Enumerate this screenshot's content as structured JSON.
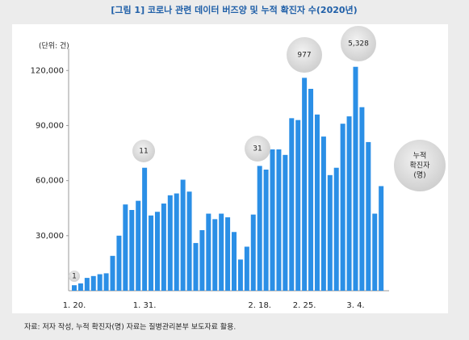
{
  "chart_data": {
    "type": "bar",
    "title": "[그림 1] 코로나 관련 데이터 버즈양 및 누적 확진자 수(2020년)",
    "y_label": "(단위: 건)",
    "source": "자료: 저자 작성, 누적 확진자(명) 자료는 질병관리본부 보도자료 활용.",
    "categories": [
      "1. 20.",
      null,
      null,
      null,
      null,
      null,
      null,
      null,
      null,
      null,
      null,
      "1. 31.",
      null,
      null,
      null,
      null,
      null,
      null,
      null,
      null,
      null,
      null,
      null,
      null,
      null,
      null,
      null,
      null,
      null,
      "2. 18.",
      null,
      null,
      null,
      null,
      null,
      null,
      "2. 25.",
      null,
      null,
      null,
      null,
      null,
      null,
      null,
      "3. 4.",
      null,
      null,
      null,
      null
    ],
    "values": [
      3000,
      4000,
      7000,
      8000,
      9000,
      9500,
      19000,
      30000,
      47000,
      44000,
      49000,
      67000,
      41000,
      43000,
      47500,
      52000,
      53000,
      60500,
      54000,
      26000,
      33000,
      42000,
      39000,
      42000,
      40000,
      32000,
      17000,
      24000,
      41500,
      68000,
      66000,
      77000,
      77000,
      74000,
      94000,
      93000,
      116000,
      110000,
      96000,
      84000,
      63000,
      67000,
      91000,
      95000,
      122000,
      100000,
      81000,
      42000,
      57000
    ],
    "color": "#2b8fe6",
    "ylim": [
      0,
      132000
    ],
    "yticks": [
      {
        "value": 30000,
        "label": "30,000"
      },
      {
        "value": 60000,
        "label": "60,000"
      },
      {
        "value": 90000,
        "label": "90,000"
      },
      {
        "value": 120000,
        "label": "120,000"
      }
    ],
    "annotations": [
      "1",
      "11",
      "31",
      "977",
      "5,328"
    ],
    "legend_note": [
      "누적",
      "확진자",
      "(명)"
    ]
  }
}
